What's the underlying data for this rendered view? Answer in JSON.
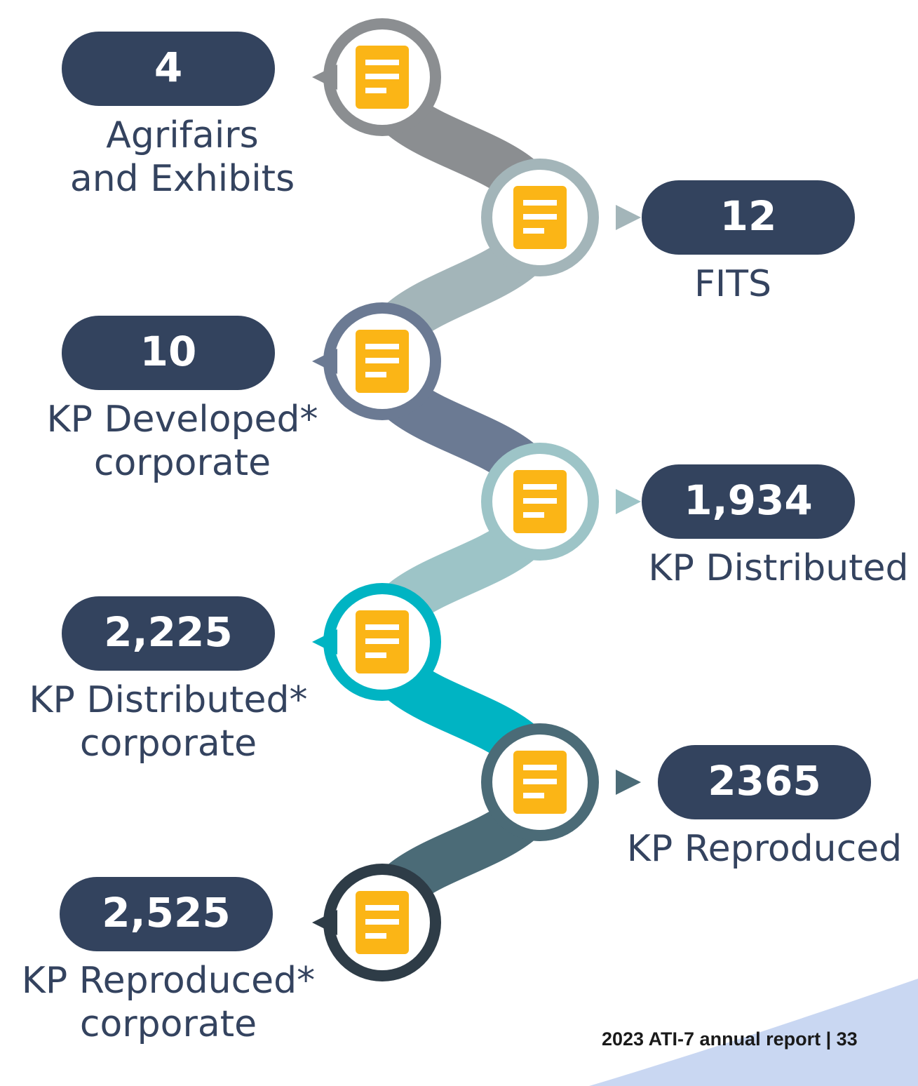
{
  "items": [
    {
      "value": "4",
      "label": [
        "Agrifairs",
        "and Exhibits"
      ]
    },
    {
      "value": "12",
      "label": [
        "FITS"
      ]
    },
    {
      "value": "10",
      "label": [
        "KP Developed*",
        "corporate"
      ]
    },
    {
      "value": "1,934",
      "label": [
        "KP Distributed"
      ]
    },
    {
      "value": "2,225",
      "label": [
        "KP Distributed*",
        "corporate"
      ]
    },
    {
      "value": "2365",
      "label": [
        "KP Reproduced"
      ]
    },
    {
      "value": "2,525",
      "label": [
        "KP Reproduced*",
        "corporate"
      ]
    }
  ],
  "footer": "2023 ATI-7 annual report | 33"
}
